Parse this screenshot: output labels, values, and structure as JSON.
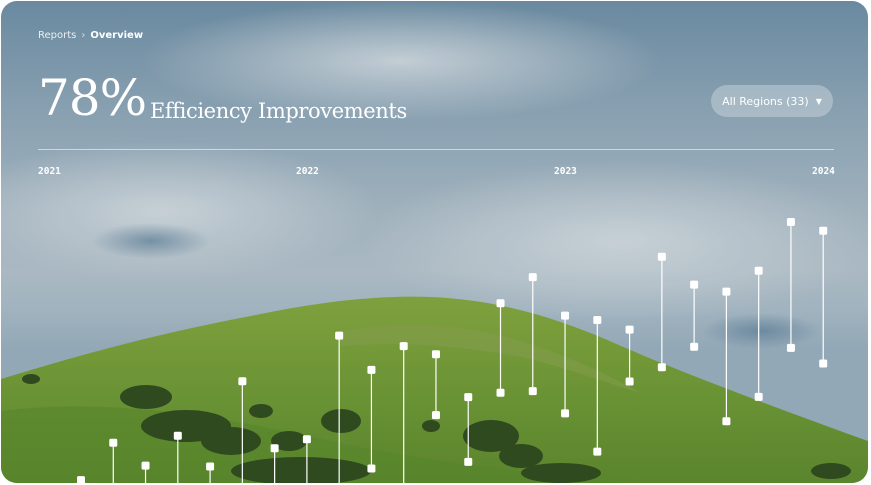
{
  "breadcrumb": {
    "parent": "Reports",
    "separator": "›",
    "current": "Overview"
  },
  "headline": {
    "value": "78%",
    "label": "Efficiency Improvements"
  },
  "region_filter": {
    "label": "All Regions (33)",
    "caret": "▼"
  },
  "timeline": {
    "years": [
      "2021",
      "2022",
      "2023",
      "2024"
    ]
  },
  "colors": {
    "accent": "#ffffff",
    "sky": "#8ea7b8",
    "hill": "#6f9a32"
  },
  "chart_data": {
    "type": "range-bar",
    "x": [
      1,
      2,
      3,
      4,
      5,
      6,
      7,
      8,
      9,
      10,
      11,
      12,
      13,
      14,
      15,
      16,
      17,
      18,
      19,
      20,
      21,
      22,
      23,
      24
    ],
    "low": [
      0.0,
      0.0,
      0.0,
      0.0,
      0.0,
      0.0,
      0.0,
      0.0,
      0.0,
      5.0,
      0.0,
      23.4,
      7.3,
      31.1,
      31.7,
      24.0,
      10.8,
      35.0,
      39.9,
      47.0,
      21.3,
      29.7,
      46.6,
      41.2
    ],
    "high": [
      1.0,
      13.9,
      6.0,
      16.3,
      5.7,
      35.1,
      12.0,
      15.1,
      50.8,
      39.0,
      47.2,
      44.4,
      29.6,
      62.0,
      71.0,
      57.7,
      56.2,
      52.9,
      78.0,
      68.4,
      66.0,
      73.2,
      90.0,
      87.0
    ],
    "ylim": [
      0,
      100
    ]
  }
}
